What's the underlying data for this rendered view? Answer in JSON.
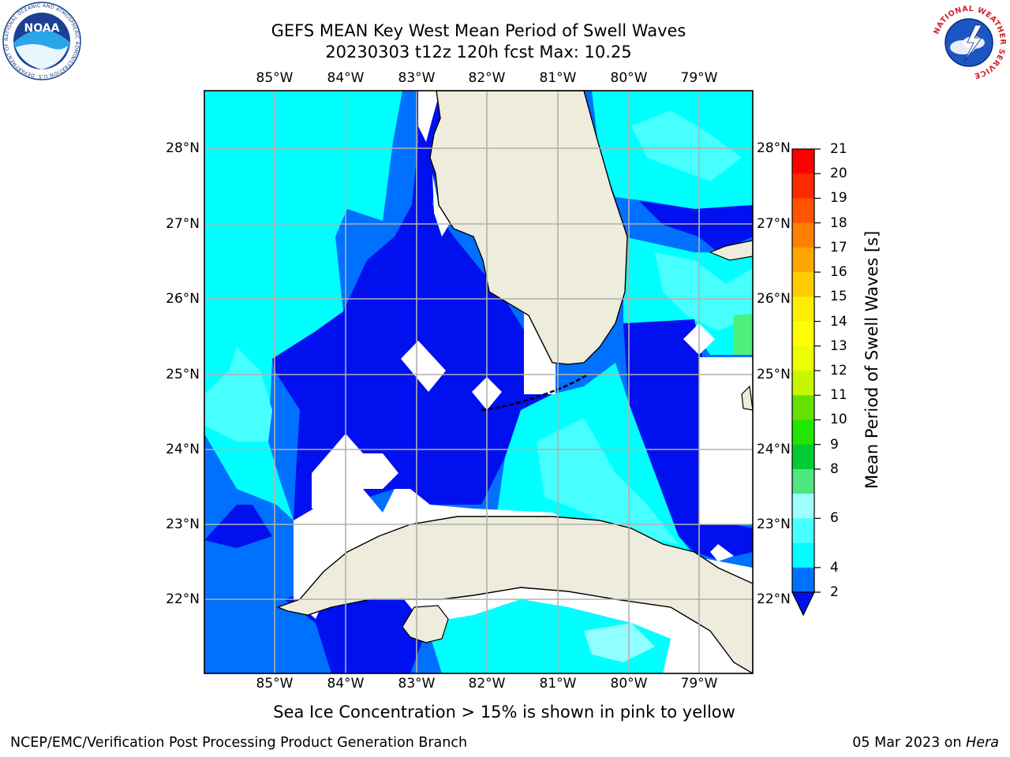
{
  "title": {
    "line1": "GEFS MEAN Key West Mean Period of Swell Waves",
    "line2": "20230303 t12z 120h fcst   Max: 10.25"
  },
  "map": {
    "lon_labels": [
      "85°W",
      "84°W",
      "83°W",
      "82°W",
      "81°W",
      "80°W",
      "79°W"
    ],
    "lat_labels": [
      "28°N",
      "27°N",
      "26°N",
      "25°N",
      "24°N",
      "23°N",
      "22°N"
    ],
    "colors": {
      "band_2_4": "#0010ef",
      "band_4_6": "#0070ff",
      "band_6_8": "#00ffff",
      "band_8_9": "#47ffff",
      "band_9_10": "#8fffff",
      "band_10_11": "#4cf07a",
      "land": "#eeecdc",
      "grid": "#b0b0b0"
    }
  },
  "colorbar": {
    "ticks": [
      "21",
      "20",
      "19",
      "18",
      "17",
      "16",
      "15",
      "14",
      "13",
      "12",
      "11",
      "10",
      "9",
      "8",
      "6",
      "4",
      "2"
    ],
    "label": "Mean Period of Swell Waves [s]",
    "colors": [
      "#ff0000",
      "#ff2a00",
      "#ff5500",
      "#ff8000",
      "#ffa500",
      "#ffcc00",
      "#ffee00",
      "#ffff00",
      "#eaff00",
      "#c6f700",
      "#66e000",
      "#22e600",
      "#00cc33",
      "#4de680",
      "#9fffff",
      "#47ffff",
      "#00ffff",
      "#0070ff",
      "#0010ef"
    ]
  },
  "note": "Sea Ice Concentration > 15% is shown in pink to yellow",
  "footer": {
    "left": "NCEP/EMC/Verification Post Processing Product Generation Branch",
    "date": "05 Mar 2023 on ",
    "host": "Hera"
  },
  "logos": {
    "left_text": "NOAA",
    "left_ring": "NATIONAL OCEANIC AND ATMOSPHERIC ADMINISTRATION  U.S. DEPARTMENT OF COMMERCE",
    "right_ring": "NATIONAL WEATHER SERVICE"
  }
}
